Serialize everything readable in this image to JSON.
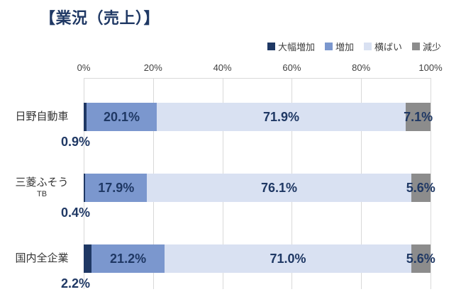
{
  "chart_data": {
    "type": "bar",
    "orientation": "horizontal",
    "stacked": true,
    "title": "【業況（売上）】",
    "categories": [
      "日野自動車",
      "三菱ふそう\nTB",
      "国内全企業"
    ],
    "series": [
      {
        "name": "大幅増加",
        "color": "#1F3864",
        "values": [
          0.9,
          0.4,
          2.2
        ],
        "label_position": "below-left"
      },
      {
        "name": "増加",
        "color": "#7B97CE",
        "values": [
          20.1,
          17.9,
          21.2
        ],
        "label_position": "inside"
      },
      {
        "name": "横ばい",
        "color": "#D9E1F2",
        "values": [
          71.9,
          76.1,
          71.0
        ],
        "label_position": "inside"
      },
      {
        "name": "減少",
        "color": "#8C8C8C",
        "values": [
          7.1,
          5.6,
          5.6
        ],
        "label_position": "inside"
      }
    ],
    "xlim": [
      0,
      100
    ],
    "x_ticks": [
      "0%",
      "20%",
      "40%",
      "60%",
      "80%",
      "100%"
    ],
    "grid": true,
    "legend_position": "top-right",
    "value_label_format": "0.0%",
    "label_color": "#1F3864"
  },
  "styles": {
    "title_color": "#1F3864",
    "label_color": "#1F3864",
    "grid_color": "#D9D9D9",
    "tick_color": "#404040",
    "legend_text_color": "#404040"
  }
}
